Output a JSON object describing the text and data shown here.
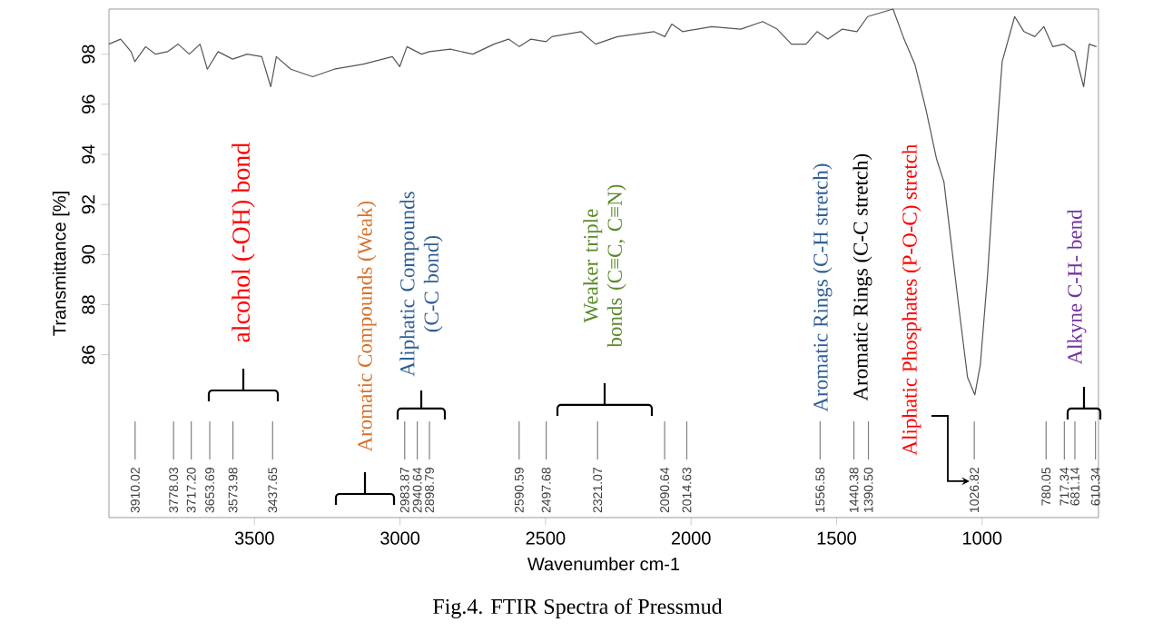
{
  "chart_data": {
    "type": "line",
    "xlabel": "Wavenumber cm-1",
    "ylabel": "Transmittance [%]",
    "xlim": [
      4000,
      600
    ],
    "ylim": [
      79.5,
      99.8
    ],
    "xticks": [
      3500,
      3000,
      2500,
      2000,
      1500,
      1000
    ],
    "yticks": [
      86,
      88,
      90,
      92,
      94,
      96,
      98
    ],
    "series": [
      {
        "color": "#555555",
        "x": [
          4000,
          3960,
          3924,
          3911,
          3874,
          3840,
          3799,
          3762,
          3724,
          3687,
          3662,
          3625,
          3575,
          3525,
          3475,
          3444,
          3425,
          3375,
          3300,
          3226,
          3126,
          3026,
          3001,
          2976,
          2926,
          2899,
          2827,
          2750,
          2677,
          2627,
          2590,
          2550,
          2498,
          2478,
          2378,
          2328,
          2253,
          2128,
          2090,
          2066,
          2029,
          1929,
          1829,
          1754,
          1704,
          1655,
          1605,
          1567,
          1530,
          1480,
          1430,
          1393,
          1306,
          1268,
          1231,
          1193,
          1156,
          1131,
          1081,
          1050,
          1025,
          1006,
          981,
          960,
          945,
          931,
          888,
          856,
          819,
          788,
          757,
          719,
          682,
          651,
          632,
          607
        ],
        "values": [
          98.4,
          98.6,
          98.1,
          97.7,
          98.3,
          98.0,
          98.1,
          98.4,
          98.0,
          98.4,
          97.4,
          98.1,
          97.8,
          98.0,
          97.9,
          96.7,
          97.9,
          97.4,
          97.1,
          97.4,
          97.6,
          97.9,
          97.5,
          98.3,
          98.0,
          98.1,
          98.2,
          98.0,
          98.4,
          98.6,
          98.3,
          98.6,
          98.5,
          98.7,
          98.9,
          98.4,
          98.7,
          98.9,
          98.7,
          99.2,
          98.9,
          99.1,
          99.0,
          99.3,
          99.0,
          98.4,
          98.4,
          98.9,
          98.6,
          99.0,
          98.9,
          99.5,
          99.8,
          98.6,
          97.6,
          95.8,
          93.8,
          92.9,
          88.0,
          85.1,
          84.4,
          85.6,
          89.2,
          93.0,
          95.5,
          97.7,
          99.5,
          98.9,
          98.7,
          99.1,
          98.3,
          98.4,
          98.1,
          96.7,
          98.4,
          98.3
        ]
      }
    ],
    "annotations": [
      "Fig.4. FTIR Spectra of Pressmud",
      "alcohol (-OH) bond",
      "Aromatic Compounds (Weak)",
      "Aliphatic Compounds (C-C bond)",
      "Weaker triple bonds (C≡C, C≡N)",
      "Aromatic Rings (C-H stretch)",
      "Aromatic Rings (C-C stretch)",
      "Aliphatic Phosphates (P-O-C) stretch",
      "Alkyne C-H- bend",
      {
        "text": "3910.02",
        "x": 3910.02
      },
      {
        "text": "3778.03",
        "x": 3778.03
      },
      {
        "text": "3717.20",
        "x": 3717.2
      },
      {
        "text": "3653.69",
        "x": 3653.69
      },
      {
        "text": "3573.98",
        "x": 3573.98
      },
      {
        "text": "3437.65",
        "x": 3437.65
      },
      {
        "text": "2983.87",
        "x": 2983.87
      },
      {
        "text": "2940.64",
        "x": 2940.64
      },
      {
        "text": "2898.79",
        "x": 2898.79
      },
      {
        "text": "2590.59",
        "x": 2590.59
      },
      {
        "text": "2497.68",
        "x": 2497.68
      },
      {
        "text": "2321.07",
        "x": 2321.07
      },
      {
        "text": "2090.64",
        "x": 2090.64
      },
      {
        "text": "2014.63",
        "x": 2014.63
      },
      {
        "text": "1556.58",
        "x": 1556.58
      },
      {
        "text": "1440.38",
        "x": 1440.38
      },
      {
        "text": "1390.50",
        "x": 1390.5
      },
      {
        "text": "1026.82",
        "x": 1026.82
      },
      {
        "text": "780.05",
        "x": 780.05
      },
      {
        "text": "717.34",
        "x": 717.34
      },
      {
        "text": "681.14",
        "x": 681.14
      },
      {
        "text": "610.34",
        "x": 610.34
      }
    ]
  }
}
